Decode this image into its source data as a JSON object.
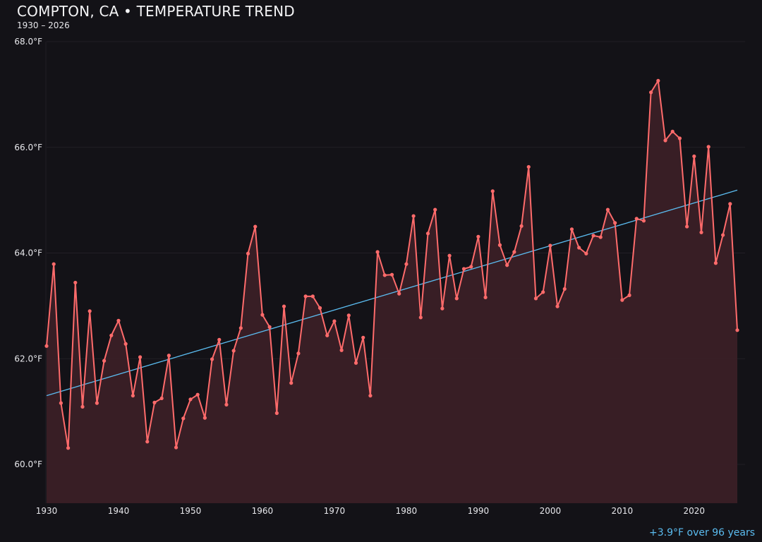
{
  "chart_data": {
    "type": "line",
    "title": "COMPTON, CA • TEMPERATURE TREND",
    "subtitle": "1930 – 2026",
    "annotation": "+3.9°F over 96 years",
    "xlabel": "",
    "ylabel": "",
    "xlim": [
      1930,
      2026
    ],
    "ylim": [
      59.27,
      68.0
    ],
    "grid": true,
    "legend": "none",
    "x_ticks": [
      "1930",
      "1940",
      "1950",
      "1960",
      "1970",
      "1980",
      "1990",
      "2000",
      "2010",
      "2020"
    ],
    "y_ticks": [
      "60.0°F",
      "62.0°F",
      "64.0°F",
      "66.0°F",
      "68.0°F"
    ],
    "colors": {
      "background": "#131217",
      "series": "#ff6b6b",
      "fill": "#3a2026",
      "trend": "#5bbcf0",
      "grid": "#221f26"
    },
    "x": [
      1930,
      1931,
      1932,
      1933,
      1934,
      1935,
      1936,
      1937,
      1938,
      1939,
      1940,
      1941,
      1942,
      1943,
      1944,
      1945,
      1946,
      1947,
      1948,
      1949,
      1950,
      1951,
      1952,
      1953,
      1954,
      1955,
      1956,
      1957,
      1958,
      1959,
      1960,
      1961,
      1962,
      1963,
      1964,
      1965,
      1966,
      1967,
      1968,
      1969,
      1970,
      1971,
      1972,
      1973,
      1974,
      1975,
      1976,
      1977,
      1978,
      1979,
      1980,
      1981,
      1982,
      1983,
      1984,
      1985,
      1986,
      1987,
      1988,
      1989,
      1990,
      1991,
      1992,
      1993,
      1994,
      1995,
      1996,
      1997,
      1998,
      1999,
      2000,
      2001,
      2002,
      2003,
      2004,
      2005,
      2006,
      2007,
      2008,
      2009,
      2010,
      2011,
      2012,
      2013,
      2014,
      2015,
      2016,
      2017,
      2018,
      2019,
      2020,
      2021,
      2022,
      2023,
      2024,
      2025,
      2026
    ],
    "series": [
      {
        "values": [
          62.24,
          63.79,
          61.16,
          60.31,
          63.44,
          61.09,
          62.9,
          61.16,
          61.96,
          62.44,
          62.72,
          62.28,
          61.3,
          62.03,
          60.43,
          61.17,
          61.25,
          62.06,
          60.32,
          60.87,
          61.23,
          61.32,
          60.88,
          61.99,
          62.36,
          61.13,
          62.15,
          62.58,
          63.99,
          64.5,
          62.83,
          62.6,
          60.97,
          62.99,
          61.54,
          62.1,
          63.18,
          63.18,
          62.96,
          62.44,
          62.71,
          62.16,
          62.82,
          61.92,
          62.4,
          61.3,
          64.02,
          63.58,
          63.59,
          63.23,
          63.79,
          64.7,
          62.78,
          64.37,
          64.82,
          62.95,
          63.95,
          63.14,
          63.7,
          63.74,
          64.31,
          63.16,
          65.17,
          64.15,
          63.77,
          64.02,
          64.51,
          65.63,
          63.14,
          63.26,
          64.14,
          62.99,
          63.32,
          64.45,
          64.1,
          63.99,
          64.33,
          64.3,
          64.82,
          64.57,
          63.11,
          63.2,
          64.65,
          64.61,
          67.04,
          67.26,
          66.13,
          66.3,
          66.17,
          64.5,
          65.83,
          64.39,
          66.01,
          63.81,
          64.34,
          64.93,
          62.54
        ]
      }
    ],
    "trend": {
      "start": [
        1930,
        61.3
      ],
      "end": [
        2026,
        65.19
      ]
    }
  }
}
